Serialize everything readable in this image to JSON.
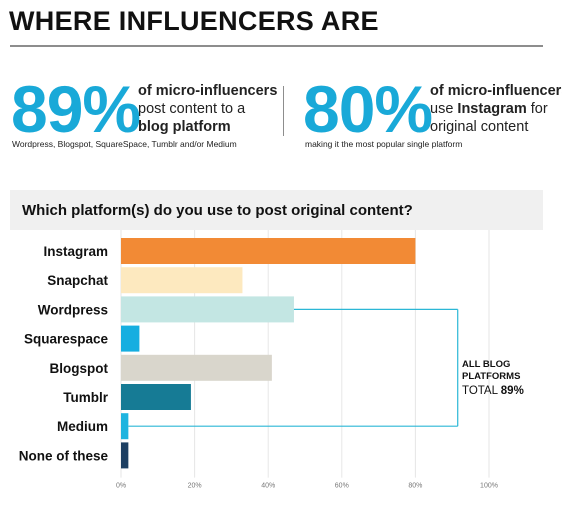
{
  "header": {
    "title": "WHERE INFLUENCERS ARE"
  },
  "stats": [
    {
      "big": "89%",
      "line1_bold": "of micro-influencers",
      "line2": "post content to a",
      "line3_bold": "blog platform",
      "note": "Wordpress, Blogspot, SquareSpace, Tumblr and/or Medium"
    },
    {
      "big": "80%",
      "line1_bold": "of micro-influencers",
      "line2_pre": "use ",
      "line2_bold": "Instagram",
      "line2_post": " for",
      "line3": "original content",
      "note": "making it the most popular single platform"
    }
  ],
  "chart_data": {
    "type": "bar",
    "orientation": "horizontal",
    "title": "Which platform(s) do you use to post original content?",
    "categories": [
      "Instagram",
      "Snapchat",
      "Wordpress",
      "Squarespace",
      "Blogspot",
      "Tumblr",
      "Medium",
      "None of these"
    ],
    "values": [
      80,
      33,
      47,
      5,
      41,
      19,
      2,
      2
    ],
    "colors": [
      "#f28a35",
      "#fde9bf",
      "#c3e6e3",
      "#16aee0",
      "#d9d6cc",
      "#167b95",
      "#1fb4df",
      "#1d3f62"
    ],
    "xlim": [
      0,
      100
    ],
    "xticks": [
      "0%",
      "20%",
      "40%",
      "60%",
      "80%",
      "100%"
    ],
    "grid": true,
    "annotation": {
      "line1": "ALL BLOG",
      "line2": "PLATFORMS",
      "line3_pre": "TOTAL ",
      "line3_bold": "89%",
      "bracket_color": "#2bb7d6"
    }
  }
}
